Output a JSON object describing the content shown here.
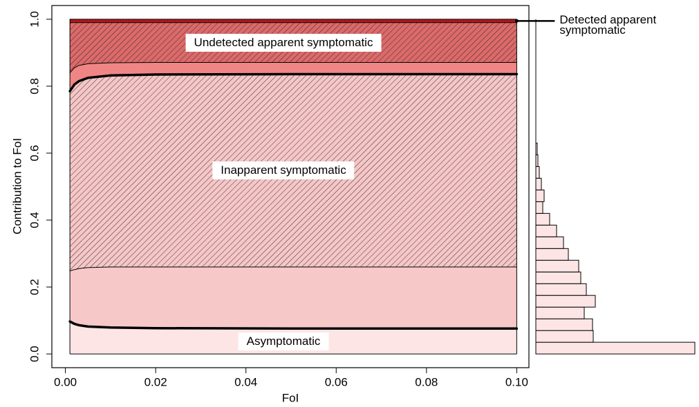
{
  "chart_data": {
    "type": "stacked_area",
    "xlabel": "FoI",
    "ylabel": "Contribution to FoI",
    "x": [
      0.001,
      0.002,
      0.003,
      0.005,
      0.01,
      0.02,
      0.05,
      0.1
    ],
    "xlim": [
      -0.003,
      0.1027
    ],
    "ylim": [
      -0.041,
      1.041
    ],
    "xticks": [
      {
        "value": 0,
        "label": "0.00"
      },
      0.02,
      0.04,
      0.06,
      0.08,
      {
        "value": 0.1,
        "label": "0.10"
      }
    ],
    "yticks": [
      {
        "value": 0,
        "label": "0.0"
      },
      0.2,
      0.4,
      0.6,
      0.8,
      {
        "value": 1,
        "label": "1.0"
      }
    ],
    "series": [
      {
        "name": "Asymptomatic",
        "color": "#fde5e5",
        "hatch": false,
        "edge_width": 3.5,
        "label_style": "box",
        "values": [
          0.097,
          0.09,
          0.086,
          0.082,
          0.079,
          0.077,
          0.076,
          0.076
        ]
      },
      {
        "color": "#f7c8c8",
        "hatch": false,
        "edge_width": 1,
        "values": [
          0.151,
          0.162,
          0.169,
          0.176,
          0.181,
          0.183,
          0.184,
          0.184
        ]
      },
      {
        "name": "Inapparent symptomatic",
        "color": "#f6c6c6",
        "hatch": true,
        "edge_width": 3.5,
        "label_style": "box",
        "values": [
          0.537,
          0.553,
          0.56,
          0.567,
          0.572,
          0.575,
          0.576,
          0.576
        ]
      },
      {
        "color": "#f08585",
        "hatch": false,
        "edge_width": 1,
        "values": [
          0.055,
          0.05,
          0.047,
          0.042,
          0.038,
          0.036,
          0.035,
          0.035
        ]
      },
      {
        "name": "Undetected apparent symptomatic",
        "color": "#dc6a6a",
        "hatch": true,
        "edge_width": 1,
        "label_style": "box",
        "values": [
          0.15,
          0.135,
          0.128,
          0.123,
          0.12,
          0.119,
          0.119,
          0.119
        ]
      },
      {
        "name": "Detected apparent symptomatic",
        "color": "#c41414",
        "hatch": false,
        "edge_width": 1,
        "label_style": "leader",
        "values": [
          0.01,
          0.01,
          0.01,
          0.01,
          0.01,
          0.01,
          0.01,
          0.01
        ]
      }
    ],
    "histogram": {
      "type": "histogram",
      "orientation": "horizontal",
      "color": "#fde5e5",
      "bins": [
        0,
        0.035,
        0.07,
        0.105,
        0.14,
        0.175,
        0.21,
        0.245,
        0.28,
        0.315,
        0.35,
        0.385,
        0.42,
        0.455,
        0.49,
        0.525,
        0.56,
        0.595,
        0.63
      ],
      "counts": [
        230,
        83,
        82,
        70,
        86,
        73,
        65,
        62,
        47,
        40,
        30,
        20,
        10,
        12,
        8,
        5,
        3,
        2
      ]
    }
  }
}
